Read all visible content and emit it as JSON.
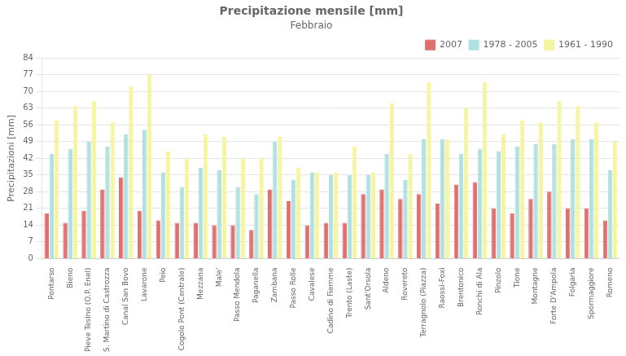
{
  "chart_data": {
    "type": "bar",
    "title": "Precipitazione mensile [mm]",
    "subtitle": "Febbraio",
    "y_label": "Precipitazioni [mm]",
    "categories": [
      "Pontarso",
      "Bieno",
      "Pieve Tesino (O.P. Enel)",
      "S. Martino di Castrozza",
      "Canal San Bovo",
      "Lavarone",
      "Peio",
      "Cogolo Pont (Centrale)",
      "Mezzana",
      "Male'",
      "Passo Mendola",
      "Paganella",
      "Zambana",
      "Passo Rolle",
      "Cavalese",
      "Cadino di Fiemme",
      "Trento (Laste)",
      "Sant'Orsola",
      "Aldeno",
      "Rovereto",
      "Terragnolo (Piazza)",
      "Raossi-Foxi",
      "Brentonico",
      "Ronchi di Ala",
      "Pinzolo",
      "Tione",
      "Montagne",
      "Forte D'Ampola",
      "Folgaria",
      "Spormaggiore",
      "Romeno"
    ],
    "series": [
      {
        "name": "2007",
        "color": "#e07070",
        "values": [
          19,
          15,
          20,
          29,
          34,
          20,
          16,
          15,
          15,
          14,
          14,
          12,
          29,
          24,
          14,
          15,
          15,
          27,
          29,
          25,
          27,
          23,
          31,
          32,
          21,
          19,
          25,
          28,
          21,
          21,
          16
        ]
      },
      {
        "name": "1978 - 2005",
        "color": "#b0e0e0",
        "values": [
          44,
          46,
          49,
          47,
          52,
          54,
          36,
          30,
          38,
          37,
          30,
          27,
          49,
          33,
          36,
          35,
          35,
          35,
          44,
          33,
          50,
          50,
          44,
          46,
          45,
          47,
          48,
          48,
          50,
          50,
          37
        ]
      },
      {
        "name": "1961 - 1990",
        "color": "#f5f5a0",
        "values": [
          58,
          64,
          66,
          57,
          72,
          77,
          45,
          42,
          52,
          51,
          42,
          42,
          51,
          38,
          36,
          36,
          47,
          36,
          65,
          44,
          74,
          50,
          63,
          74,
          52,
          58,
          57,
          66,
          64,
          57,
          49
        ]
      }
    ],
    "ylim": [
      0,
      84
    ],
    "yticks": [
      0,
      7,
      14,
      21,
      28,
      35,
      42,
      49,
      56,
      63,
      70,
      77,
      84
    ],
    "grid": true,
    "legend": "upper right"
  }
}
